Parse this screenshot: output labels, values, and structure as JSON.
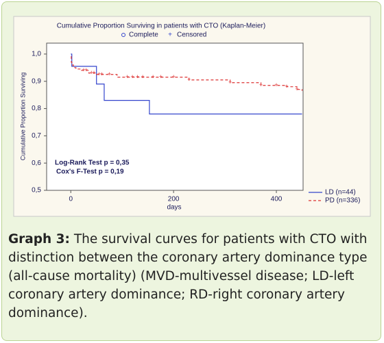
{
  "chart_data": {
    "type": "line",
    "title": "Cumulative Proportion Surviving in patients with CTO (Kaplan-Meier)",
    "marker_legend": [
      "Complete",
      "Censored"
    ],
    "y_label": "Cumulative Proportion Surviving",
    "x_label": "days",
    "annotations": [
      "Log-Rank Test  p = 0,35",
      "Cox's F-Test  p = 0,19"
    ],
    "xlim": [
      -47,
      452
    ],
    "xticks": [
      0,
      200,
      400
    ],
    "ylim": [
      0.5,
      1.04
    ],
    "yticks": [
      {
        "value": 0.5,
        "label": "0,5"
      },
      {
        "value": 0.6,
        "label": "0,6"
      },
      {
        "value": 0.7,
        "label": "0,7"
      },
      {
        "value": 0.8,
        "label": "0,8"
      },
      {
        "value": 0.9,
        "label": "0,9"
      },
      {
        "value": 1.0,
        "label": "1,0"
      }
    ],
    "grid": false,
    "legend": "lower right",
    "series": [
      {
        "name": "LD (n=44)",
        "color": "#3344cc",
        "dash": false,
        "x": [
          0,
          2,
          50,
          65,
          153,
          450
        ],
        "values": [
          1.0,
          0.955,
          0.89,
          0.83,
          0.78,
          0.78
        ],
        "censored_x": []
      },
      {
        "name": "PD (n=336)",
        "color": "#dd3333",
        "dash": true,
        "x": [
          0,
          1,
          2,
          5,
          10,
          20,
          35,
          50,
          90,
          230,
          310,
          370,
          420,
          440,
          450
        ],
        "values": [
          0.99,
          0.97,
          0.96,
          0.95,
          0.945,
          0.94,
          0.93,
          0.925,
          0.915,
          0.905,
          0.895,
          0.885,
          0.88,
          0.87,
          0.865
        ],
        "censored_x": [
          25,
          30,
          40,
          45,
          55,
          60,
          75,
          110,
          120,
          130,
          140,
          160,
          175,
          200,
          230,
          310,
          370,
          400,
          420,
          440
        ]
      }
    ]
  },
  "caption": {
    "label": "Graph 3:",
    "text": "The survival curves for patients with CTO with distinction between the coronary artery dominance type (all-cause mortality) (MVD-multivessel disease; LD-left coronary artery dominance; RD-right coronary artery dominance)."
  }
}
